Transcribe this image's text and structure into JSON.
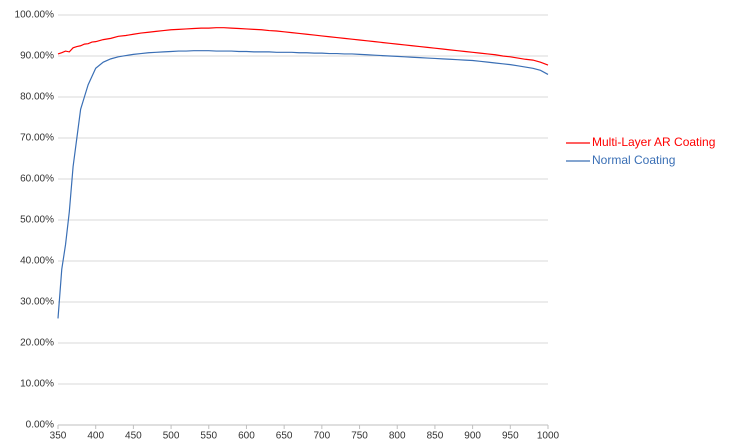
{
  "chart_data": {
    "type": "line",
    "x": [
      350,
      355,
      360,
      365,
      370,
      375,
      380,
      385,
      390,
      395,
      400,
      410,
      420,
      430,
      440,
      450,
      460,
      470,
      480,
      490,
      500,
      510,
      520,
      530,
      540,
      550,
      560,
      570,
      580,
      590,
      600,
      610,
      620,
      630,
      640,
      650,
      660,
      670,
      680,
      690,
      700,
      710,
      720,
      730,
      740,
      750,
      760,
      770,
      780,
      790,
      800,
      810,
      820,
      830,
      840,
      850,
      860,
      870,
      880,
      890,
      900,
      910,
      920,
      930,
      940,
      950,
      960,
      970,
      980,
      990,
      1000
    ],
    "series": [
      {
        "name": "Multi-Layer AR Coating",
        "color": "#ff0000",
        "values": [
          90.5,
          90.8,
          91.2,
          91.0,
          92.0,
          92.3,
          92.5,
          92.9,
          93.0,
          93.4,
          93.5,
          94.0,
          94.3,
          94.8,
          95.0,
          95.3,
          95.6,
          95.8,
          96.0,
          96.2,
          96.4,
          96.5,
          96.6,
          96.7,
          96.8,
          96.8,
          96.9,
          96.9,
          96.8,
          96.7,
          96.6,
          96.5,
          96.4,
          96.2,
          96.1,
          95.9,
          95.7,
          95.5,
          95.3,
          95.1,
          94.9,
          94.7,
          94.5,
          94.3,
          94.1,
          93.9,
          93.7,
          93.5,
          93.3,
          93.1,
          92.9,
          92.7,
          92.5,
          92.3,
          92.1,
          91.9,
          91.7,
          91.5,
          91.3,
          91.1,
          90.9,
          90.7,
          90.5,
          90.3,
          90.0,
          89.8,
          89.5,
          89.2,
          89.0,
          88.5,
          87.8
        ]
      },
      {
        "name": "Normal Coating",
        "color": "#3a6fb5",
        "values": [
          26,
          38,
          44,
          52,
          63,
          70,
          77,
          80,
          83,
          85,
          87,
          88.5,
          89.3,
          89.8,
          90.1,
          90.4,
          90.6,
          90.8,
          90.9,
          91.0,
          91.1,
          91.2,
          91.2,
          91.3,
          91.3,
          91.3,
          91.2,
          91.2,
          91.2,
          91.1,
          91.1,
          91.0,
          91.0,
          91.0,
          90.9,
          90.9,
          90.9,
          90.8,
          90.8,
          90.7,
          90.7,
          90.6,
          90.6,
          90.5,
          90.5,
          90.4,
          90.3,
          90.2,
          90.1,
          90.0,
          89.9,
          89.8,
          89.7,
          89.6,
          89.5,
          89.4,
          89.3,
          89.2,
          89.1,
          89.0,
          88.9,
          88.7,
          88.5,
          88.3,
          88.1,
          87.9,
          87.6,
          87.3,
          87.0,
          86.5,
          85.5
        ]
      }
    ],
    "xlim": [
      350,
      1000
    ],
    "xticks": [
      350,
      400,
      450,
      500,
      550,
      600,
      650,
      700,
      750,
      800,
      850,
      900,
      950,
      1000
    ],
    "ylim": [
      0,
      100
    ],
    "yticks": [
      {
        "value": 0,
        "label": "0.00%"
      },
      {
        "value": 10,
        "label": "10.00%"
      },
      {
        "value": 20,
        "label": "20.00%"
      },
      {
        "value": 30,
        "label": "30.00%"
      },
      {
        "value": 40,
        "label": "40.00%"
      },
      {
        "value": 50,
        "label": "50.00%"
      },
      {
        "value": 60,
        "label": "60.00%"
      },
      {
        "value": 70,
        "label": "70.00%"
      },
      {
        "value": 80,
        "label": "80.00%"
      },
      {
        "value": 90,
        "label": "90.00%"
      },
      {
        "value": 100,
        "label": "100.00%"
      }
    ],
    "grid": true,
    "legend": "right"
  }
}
